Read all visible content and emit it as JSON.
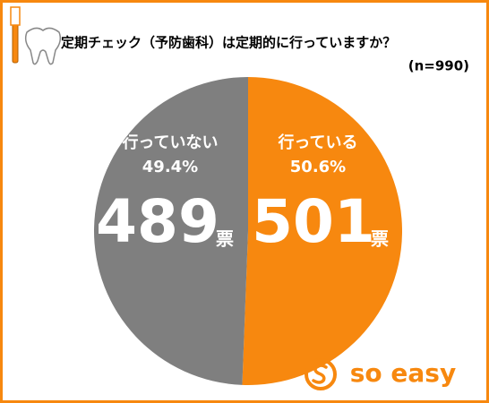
{
  "chart_data": {
    "type": "pie",
    "title": "定期チェック（予防歯科）は定期的に行っていますか？",
    "subtitle": "(n=990)",
    "categories": [
      "行っている",
      "行っていない"
    ],
    "values": [
      501,
      489
    ],
    "percent_labels": [
      "50.6%",
      "49.4%"
    ],
    "unit": "票",
    "colors": [
      "#f7880f",
      "#7f7f7f"
    ],
    "logo": "so easy"
  }
}
